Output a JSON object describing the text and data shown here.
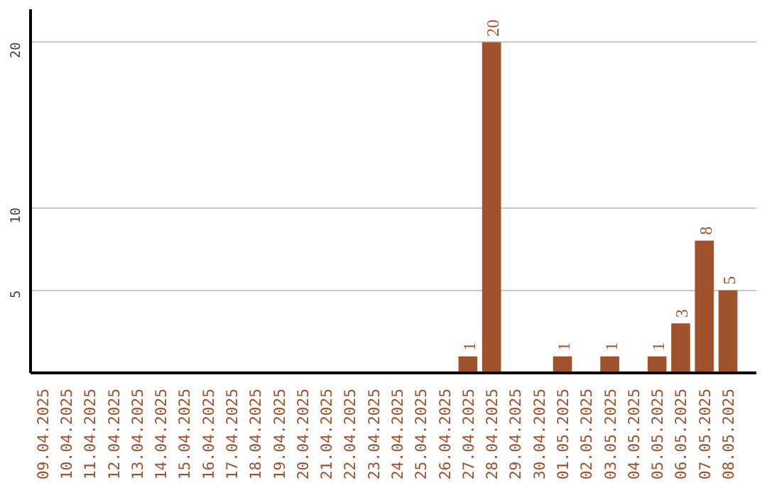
{
  "chart_data": {
    "type": "bar",
    "categories": [
      "09.04.2025",
      "10.04.2025",
      "11.04.2025",
      "12.04.2025",
      "13.04.2025",
      "14.04.2025",
      "15.04.2025",
      "16.04.2025",
      "17.04.2025",
      "18.04.2025",
      "19.04.2025",
      "20.04.2025",
      "21.04.2025",
      "22.04.2025",
      "23.04.2025",
      "24.04.2025",
      "25.04.2025",
      "26.04.2025",
      "27.04.2025",
      "28.04.2025",
      "29.04.2025",
      "30.04.2025",
      "01.05.2025",
      "02.05.2025",
      "03.05.2025",
      "04.05.2025",
      "05.05.2025",
      "06.05.2025",
      "07.05.2025",
      "08.05.2025"
    ],
    "values": [
      0,
      0,
      0,
      0,
      0,
      0,
      0,
      0,
      0,
      0,
      0,
      0,
      0,
      0,
      0,
      0,
      0,
      0,
      1,
      20,
      0,
      0,
      1,
      0,
      1,
      0,
      1,
      3,
      8,
      5
    ],
    "value_labels": [
      null,
      null,
      null,
      null,
      null,
      null,
      null,
      null,
      null,
      null,
      null,
      null,
      null,
      null,
      null,
      null,
      null,
      null,
      "1",
      "20",
      null,
      null,
      "1",
      null,
      "1",
      null,
      "1",
      "3",
      "8",
      "5"
    ],
    "color": "#a0522d",
    "ylim": [
      0,
      22
    ],
    "yticks": [
      5,
      10,
      20
    ],
    "grid": "y"
  }
}
